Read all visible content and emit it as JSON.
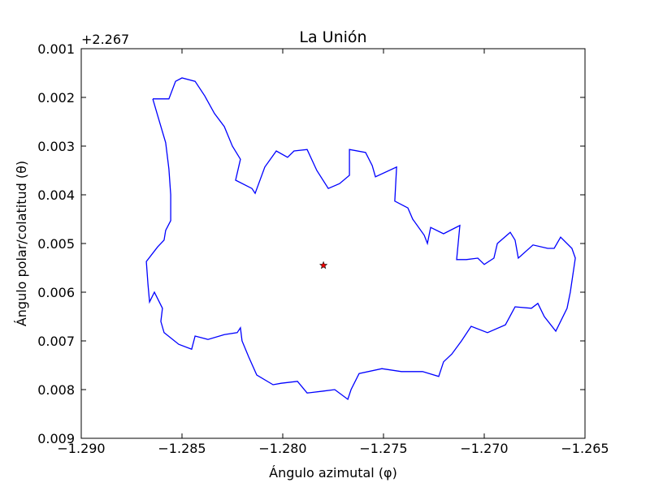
{
  "chart_data": {
    "type": "line",
    "title": "La Unión",
    "xlabel": "Ángulo azimutal (φ)",
    "ylabel": "Ángulo polar/colatitud (θ)",
    "y_offset_label": "+2.267",
    "xlim": [
      -1.29,
      -1.265
    ],
    "xticks": [
      {
        "value": -1.29,
        "label": "−1.290"
      },
      {
        "value": -1.285,
        "label": "−1.285"
      },
      {
        "value": -1.28,
        "label": "−1.280"
      },
      {
        "value": -1.275,
        "label": "−1.275"
      },
      {
        "value": -1.27,
        "label": "−1.270"
      },
      {
        "value": -1.265,
        "label": "−1.265"
      }
    ],
    "ylim": [
      0.009,
      0.001
    ],
    "yticks": [
      0.001,
      0.002,
      0.003,
      0.004,
      0.005,
      0.006,
      0.007,
      0.008,
      0.009
    ],
    "color": "#0000ff",
    "x": [
      -1.28645,
      -1.28565,
      -1.28532,
      -1.285,
      -1.28435,
      -1.28387,
      -1.28339,
      -1.2829,
      -1.2825,
      -1.2821,
      -1.28234,
      -1.28153,
      -1.28137,
      -1.28089,
      -1.28032,
      -1.27976,
      -1.27944,
      -1.27879,
      -1.27831,
      -1.27774,
      -1.27718,
      -1.27669,
      -1.27669,
      -1.27589,
      -1.27556,
      -1.2754,
      -1.27435,
      -1.27444,
      -1.27379,
      -1.27355,
      -1.27298,
      -1.27282,
      -1.27266,
      -1.27202,
      -1.27121,
      -1.27137,
      -1.27089,
      -1.27032,
      -1.27,
      -1.26952,
      -1.26935,
      -1.26871,
      -1.26847,
      -1.26831,
      -1.26758,
      -1.26685,
      -1.26653,
      -1.26621,
      -1.26565,
      -1.26548,
      -1.26573,
      -1.26589,
      -1.26645,
      -1.26702,
      -1.26734,
      -1.26766,
      -1.26847,
      -1.26895,
      -1.26984,
      -1.27065,
      -1.27113,
      -1.27161,
      -1.27202,
      -1.27226,
      -1.27306,
      -1.27411,
      -1.27508,
      -1.27621,
      -1.27661,
      -1.27677,
      -1.27742,
      -1.27798,
      -1.27879,
      -1.27927,
      -1.28008,
      -1.28048,
      -1.28129,
      -1.28169,
      -1.28202,
      -1.2821,
      -1.28226,
      -1.2829,
      -1.28371,
      -1.28435,
      -1.28452,
      -1.28516,
      -1.28589,
      -1.28605,
      -1.28597,
      -1.28637,
      -1.28661,
      -1.28669,
      -1.28677,
      -1.28621,
      -1.28589,
      -1.28581,
      -1.28556,
      -1.28556,
      -1.28565,
      -1.28581,
      -1.28621,
      -1.28645
    ],
    "values": [
      0.00203,
      0.00203,
      0.00167,
      0.0016,
      0.00167,
      0.00197,
      0.00233,
      0.0026,
      0.003,
      0.00327,
      0.0037,
      0.00387,
      0.00397,
      0.00343,
      0.0031,
      0.00323,
      0.0031,
      0.00307,
      0.0035,
      0.00387,
      0.00377,
      0.0036,
      0.00307,
      0.00313,
      0.0034,
      0.00363,
      0.00343,
      0.00413,
      0.00427,
      0.0045,
      0.00483,
      0.005,
      0.00467,
      0.0048,
      0.00463,
      0.00533,
      0.00533,
      0.0053,
      0.00543,
      0.0053,
      0.005,
      0.00477,
      0.00493,
      0.0053,
      0.00503,
      0.0051,
      0.0051,
      0.00487,
      0.0051,
      0.0053,
      0.006,
      0.00633,
      0.0068,
      0.0065,
      0.00623,
      0.00633,
      0.0063,
      0.00667,
      0.00683,
      0.0067,
      0.007,
      0.00727,
      0.00743,
      0.00773,
      0.00763,
      0.00763,
      0.00757,
      0.00767,
      0.008,
      0.0082,
      0.008,
      0.00803,
      0.00807,
      0.00783,
      0.00787,
      0.0079,
      0.0077,
      0.00733,
      0.007,
      0.00673,
      0.00683,
      0.00687,
      0.00697,
      0.0069,
      0.00717,
      0.00707,
      0.00683,
      0.0066,
      0.00633,
      0.006,
      0.0062,
      0.00583,
      0.00537,
      0.00507,
      0.00493,
      0.00473,
      0.00453,
      0.004,
      0.00347,
      0.00293,
      0.00237,
      0.00203
    ],
    "point": {
      "x": [
        -1.27798
      ],
      "values": [
        0.00545
      ],
      "color": "#ff0000",
      "marker": "star"
    }
  }
}
